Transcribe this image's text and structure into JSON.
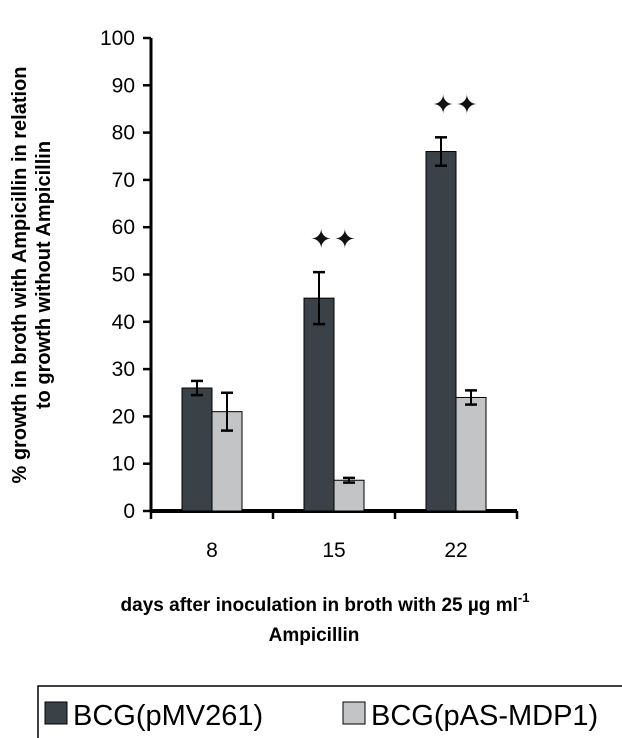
{
  "chart_data": {
    "type": "bar",
    "title": "",
    "categories": [
      "8",
      "15",
      "22"
    ],
    "series": [
      {
        "name": "BCG(pMV261)",
        "color": "#3a4147",
        "values": [
          26,
          45,
          76
        ],
        "errors": [
          1.5,
          5.5,
          3
        ]
      },
      {
        "name": "BCG(pAS-MDP1)",
        "color": "#c2c4c6",
        "values": [
          21,
          6.5,
          24
        ],
        "errors": [
          4,
          0.5,
          1.5
        ]
      }
    ],
    "ylim": [
      0,
      100
    ],
    "yticks": [
      0,
      10,
      20,
      30,
      40,
      50,
      60,
      70,
      80,
      90,
      100
    ],
    "ylabel_line1": "% growth in broth with Ampicillin in relation",
    "ylabel_line2": "to growth without Ampicillin",
    "xlabel_line1_main": "days after inoculation in broth with 25 µg ml",
    "xlabel_line1_sup": "-1",
    "xlabel_line2": "Ampicillin",
    "significance_marker": "✦✦",
    "significant_categories": [
      "15",
      "22"
    ],
    "legend_position": "bottom"
  }
}
